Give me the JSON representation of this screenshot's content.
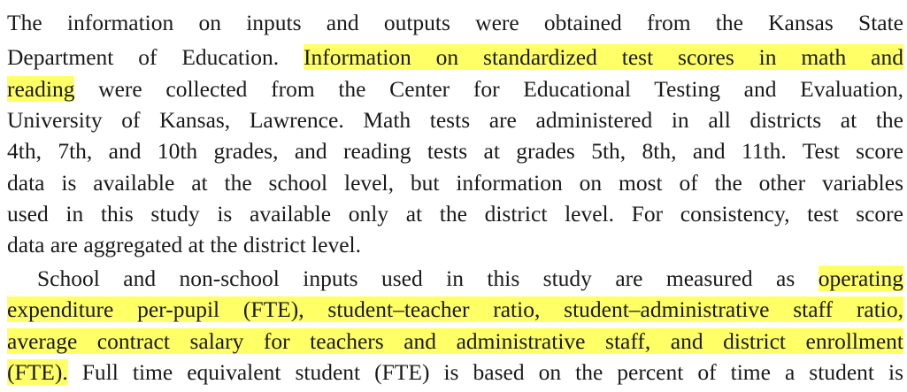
{
  "paragraph_1": {
    "line_1": "The information on inputs and outputs were obtained from the Kansas State",
    "line_2_before": "Department of Education.",
    "line_2_highlight": "Information on standardized test scores in math and",
    "line_3_highlight": "reading",
    "line_3_after": "were collected from the Center for Educational Testing and Evaluation,",
    "line_4": "University of Kansas, Lawrence. Math tests are administered in all districts at the",
    "line_5": "4th, 7th, and 10th grades, and reading tests at grades 5th, 8th, and 11th. Test score",
    "line_6": "data is available at the school level, but information on most of the other variables",
    "line_7": "used in this study is available only at the district level. For consistency, test score",
    "line_8": "data are aggregated at the district level."
  },
  "paragraph_2": {
    "line_1_before": "School and non-school inputs used in this study are measured as",
    "line_1_highlight": "operating",
    "line_2_highlight": "expenditure per-pupil (FTE), student–teacher ratio, student–administrative staff ratio,",
    "line_3_highlight": "average contract salary for teachers and administrative staff, and district enrollment",
    "line_4_highlight": "(FTE).",
    "line_4_after": "Full time equivalent student (FTE) is based on the percent of time a student is"
  },
  "highlight_color": "#ffff66"
}
